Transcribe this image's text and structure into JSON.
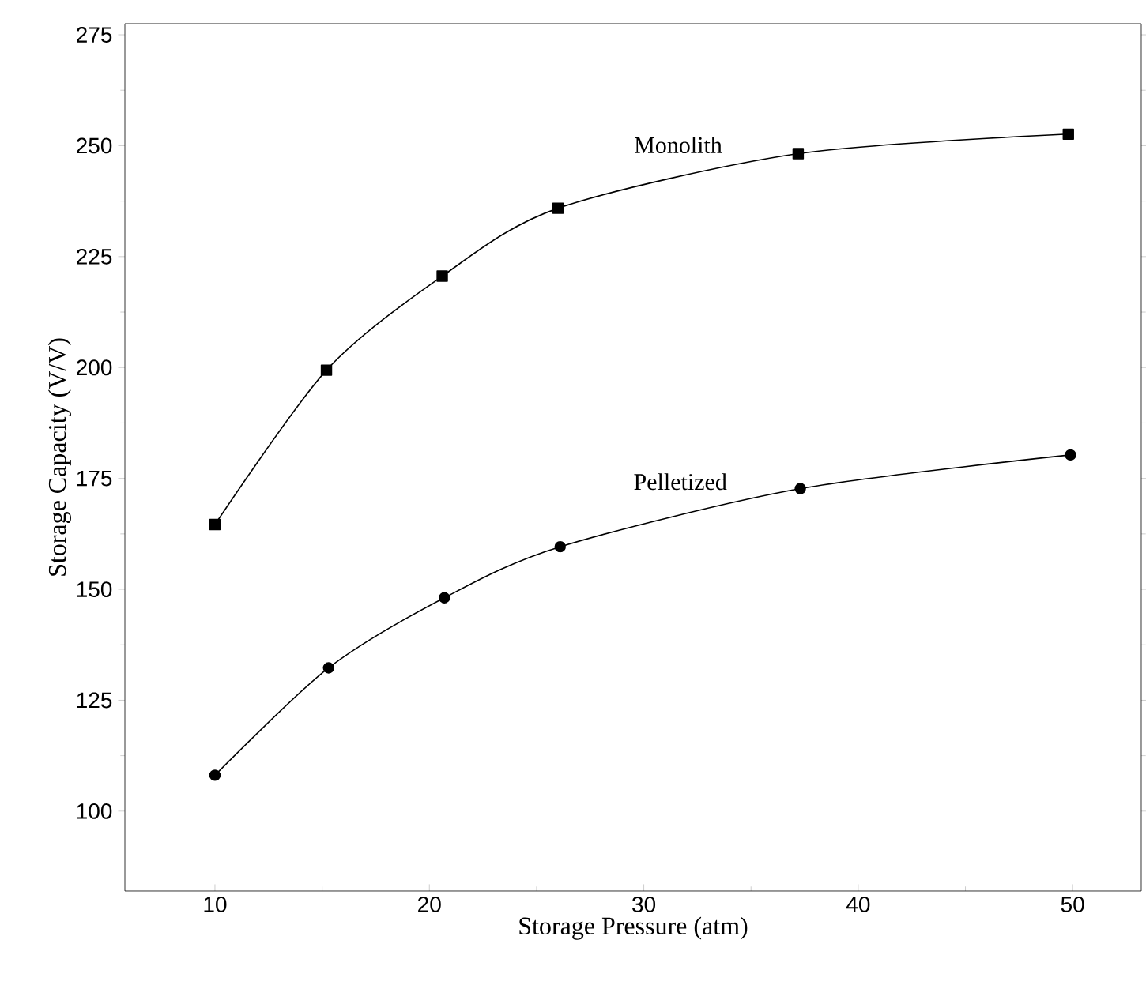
{
  "chart_data": {
    "type": "line",
    "xlabel": "Storage Pressure  (atm)",
    "ylabel": "Storage Capacity  (V/V)",
    "xlim": [
      5.8,
      53.2
    ],
    "ylim": [
      82,
      277.5
    ],
    "xticks": [
      10,
      20,
      30,
      40,
      50
    ],
    "yticks": [
      100,
      125,
      150,
      175,
      200,
      225,
      250,
      275
    ],
    "grid": false,
    "legend": false,
    "series": [
      {
        "name": "Monolith",
        "color": "#000000",
        "marker": "square",
        "x": [
          10,
          15.2,
          20.6,
          26.0,
          37.2,
          49.8
        ],
        "values": [
          164.6,
          199.4,
          220.6,
          235.9,
          248.2,
          252.6
        ]
      },
      {
        "name": "Pelletized",
        "color": "#000000",
        "marker": "circle",
        "x": [
          10,
          15.3,
          20.7,
          26.1,
          37.3,
          49.9
        ],
        "values": [
          108.1,
          132.3,
          148.1,
          159.6,
          172.7,
          180.3
        ]
      }
    ]
  }
}
